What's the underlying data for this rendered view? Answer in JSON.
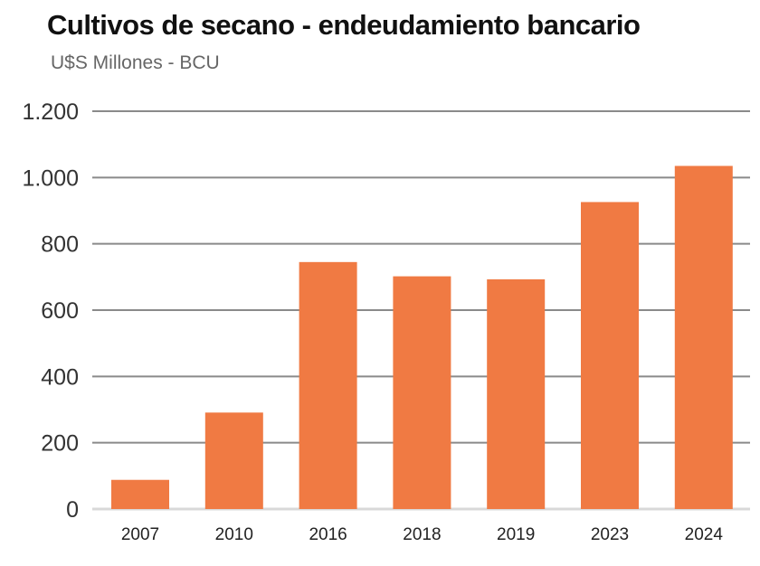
{
  "chart_data": {
    "type": "bar",
    "title": "Cultivos de secano - endeudamiento bancario",
    "subtitle": "U$S Millones - BCU",
    "categories": [
      "2007",
      "2010",
      "2016",
      "2018",
      "2019",
      "2023",
      "2024"
    ],
    "values": [
      88,
      291,
      745,
      702,
      693,
      926,
      1035
    ],
    "ylim": [
      0,
      1200
    ],
    "yticks": [
      0,
      200,
      400,
      600,
      800,
      1000,
      1200
    ],
    "ytick_labels": [
      "0",
      "200",
      "400",
      "600",
      "800",
      "1.000",
      "1.200"
    ],
    "xlabel": "",
    "ylabel": "",
    "grid": true,
    "bar_color": "#F07A43",
    "grid_color": "#8a8a8a"
  }
}
